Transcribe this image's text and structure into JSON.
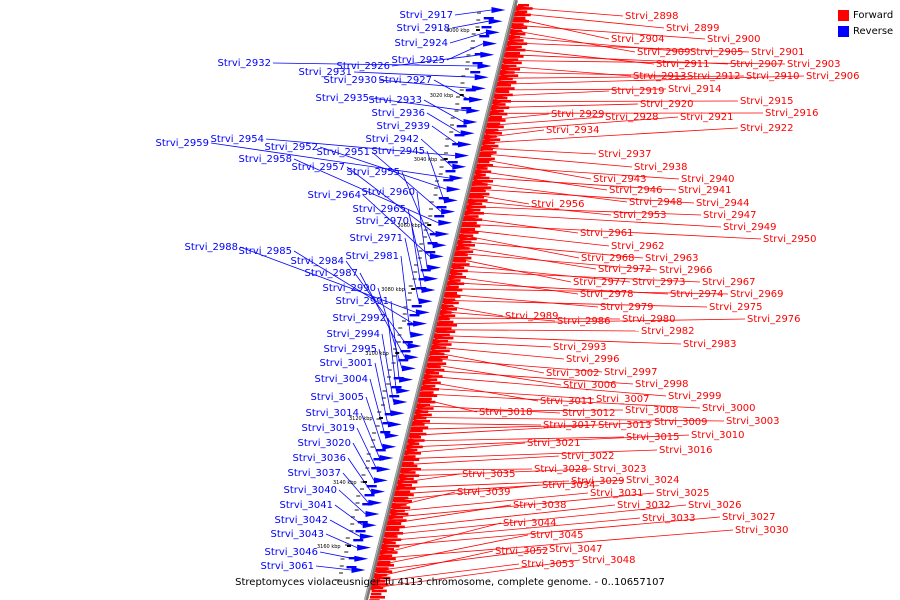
{
  "legend": {
    "forward_label": "Forward",
    "reverse_label": "Reverse",
    "forward_color": "#ff0000",
    "reverse_color": "#0000ff"
  },
  "caption": "Streptomyces violaceusniger Tu 4113 chromosome, complete genome. - 0..10657107",
  "scale_labels": [
    "3000 kbp",
    "3020 kbp",
    "3040 kbp",
    "3060 kbp",
    "3080 kbp",
    "3100 kbp",
    "3120 kbp",
    "3140 kbp",
    "3160 kbp"
  ],
  "reverse_genes": [
    "Strvi_2917",
    "Strvi_2918",
    "Strvi_2924",
    "Strvi_2925",
    "Strvi_2926",
    "Strvi_2932",
    "Strvi_2931",
    "Strvi_2930",
    "Strvi_2927",
    "Strvi_2935",
    "Strvi_2933",
    "Strvi_2936",
    "Strvi_2939",
    "Strvi_2954",
    "Strvi_2942",
    "Strvi_2959",
    "Strvi_2952",
    "Strvi_2945",
    "Strvi_2951",
    "Strvi_2958",
    "Strvi_2957",
    "Strvi_2955",
    "Strvi_2964",
    "Strvi_2960",
    "Strvi_2965",
    "Strvi_2970",
    "Strvi_2971",
    "Strvi_2988",
    "Strvi_2985",
    "Strvi_2981",
    "Strvi_2984",
    "Strvi_2987",
    "Strvi_2990",
    "Strvi_2991",
    "Strvi_2992",
    "Strvi_2994",
    "Strvi_2995",
    "Strvi_3001",
    "Strvi_3004",
    "Strvi_3005",
    "Strvi_3014",
    "Strvi_3019",
    "Strvi_3020",
    "Strvi_3036",
    "Strvi_3037",
    "Strvi_3040",
    "Strvi_3041",
    "Strvi_3042",
    "Strvi_3043",
    "Strvi_3046",
    "Strvi_3061"
  ],
  "forward_genes": [
    "Strvi_2898",
    "Strvi_2899",
    "Strvi_2904",
    "Strvi_2900",
    "Strvi_2909",
    "Strvi_2905",
    "Strvi_2901",
    "Strvi_2911",
    "Strvi_2907",
    "Strvi_2903",
    "Strvi_2913",
    "Strvi_2912",
    "Strvi_2910",
    "Strvi_2906",
    "Strvi_2914",
    "Strvi_2919",
    "Strvi_2915",
    "Strvi_2920",
    "Strvi_2916",
    "Strvi_2929",
    "Strvi_2928",
    "Strvi_2921",
    "Strvi_2934",
    "Strvi_2922",
    "Strvi_2937",
    "Strvi_2938",
    "Strvi_2943",
    "Strvi_2940",
    "Strvi_2946",
    "Strvi_2941",
    "Strvi_2948",
    "Strvi_2944",
    "Strvi_2956",
    "Strvi_2953",
    "Strvi_2947",
    "Strvi_2949",
    "Strvi_2961",
    "Strvi_2950",
    "Strvi_2962",
    "Strvi_2968",
    "Strvi_2963",
    "Strvi_2972",
    "Strvi_2966",
    "Strvi_2977",
    "Strvi_2973",
    "Strvi_2967",
    "Strvi_2978",
    "Strvi_2974",
    "Strvi_2969",
    "Strvi_2979",
    "Strvi_2975",
    "Strvi_2989",
    "Strvi_2986",
    "Strvi_2980",
    "Strvi_2976",
    "Strvi_2982",
    "Strvi_2983",
    "Strvi_2993",
    "Strvi_2996",
    "Strvi_3002",
    "Strvi_2997",
    "Strvi_3006",
    "Strvi_2998",
    "Strvi_2999",
    "Strvi_3011",
    "Strvi_3007",
    "Strvi_3000",
    "Strvi_3018",
    "Strvi_3012",
    "Strvi_3008",
    "Strvi_3003",
    "Strvi_3017",
    "Strvi_3013",
    "Strvi_3009",
    "Strvi_3015",
    "Strvi_3010",
    "Strvi_3021",
    "Strvi_3016",
    "Strvi_3022",
    "Strvi_3028",
    "Strvi_3023",
    "Strvi_3035",
    "Strvi_3029",
    "Strvi_3024",
    "Strvi_3034",
    "Strvi_3039",
    "Strvi_3031",
    "Strvi_3025",
    "Strvi_3038",
    "Strvi_3032",
    "Strvi_3026",
    "Strvi_3033",
    "Strvi_3027",
    "Strvi_3044",
    "Strvi_3030",
    "Strvi_3045",
    "Strvi_3047",
    "Strvi_3052",
    "Strvi_3053",
    "Strvi_3048"
  ]
}
